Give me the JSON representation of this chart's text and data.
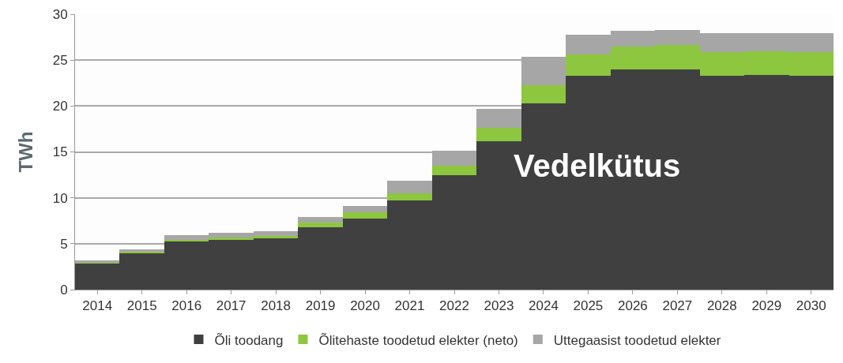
{
  "chart_data": {
    "type": "bar",
    "stacked": true,
    "ylabel": "TWh",
    "categories": [
      "2014",
      "2015",
      "2016",
      "2017",
      "2018",
      "2019",
      "2020",
      "2021",
      "2022",
      "2023",
      "2024",
      "2025",
      "2026",
      "2027",
      "2028",
      "2029",
      "2030"
    ],
    "series": [
      {
        "name": "Õli toodang",
        "color": "#404040",
        "values": [
          2.85,
          4.0,
          5.25,
          5.45,
          5.6,
          6.8,
          7.75,
          9.75,
          12.45,
          16.15,
          20.3,
          23.3,
          24.0,
          24.0,
          23.3,
          23.4,
          23.3
        ]
      },
      {
        "name": "Õlitehaste toodetud elekter (neto)",
        "color": "#8dc63f",
        "values": [
          0.05,
          0.1,
          0.2,
          0.25,
          0.25,
          0.5,
          0.65,
          0.75,
          1.05,
          1.5,
          1.95,
          2.3,
          2.5,
          2.65,
          2.55,
          2.55,
          2.55
        ]
      },
      {
        "name": "Uttegaasist toodetud elekter",
        "color": "#a6a6a6",
        "values": [
          0.25,
          0.3,
          0.5,
          0.5,
          0.55,
          0.6,
          0.7,
          1.35,
          1.65,
          2.0,
          3.15,
          2.15,
          1.7,
          1.65,
          2.1,
          1.95,
          2.1
        ]
      }
    ],
    "annotations": [
      "Vedelkütus"
    ],
    "ylim": [
      0,
      30
    ],
    "yticks": [
      0,
      5,
      10,
      15,
      20,
      25,
      30
    ],
    "grid": "y",
    "legend": "bottom"
  }
}
